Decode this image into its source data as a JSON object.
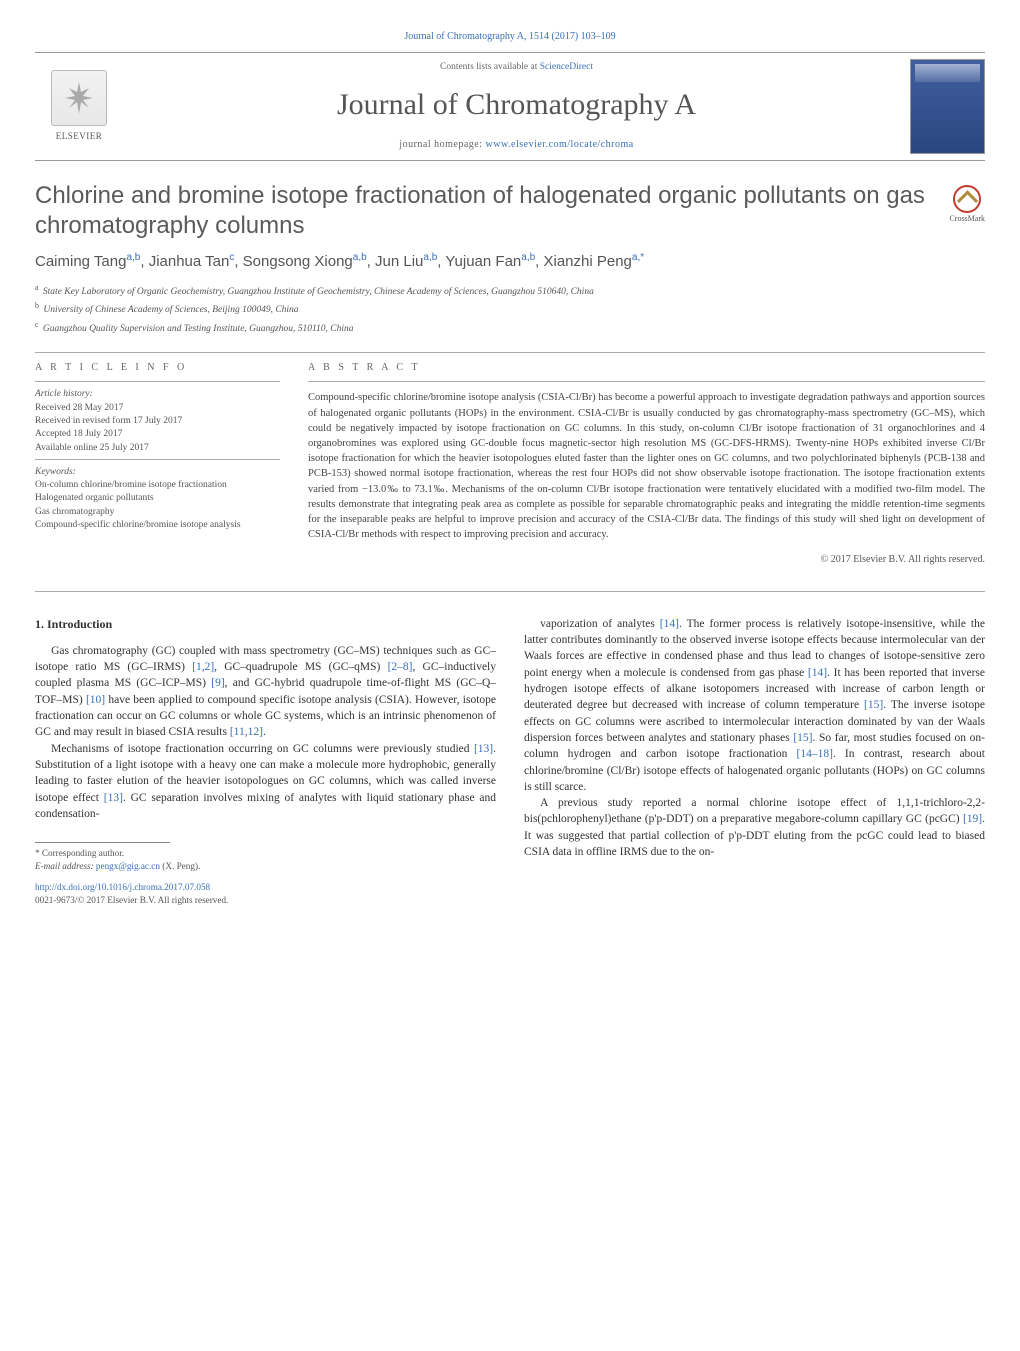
{
  "journal_ref_line": "Journal of Chromatography A, 1514 (2017) 103–109",
  "header": {
    "elsevier_label": "ELSEVIER",
    "contents_prefix": "Contents lists available at ",
    "contents_link": "ScienceDirect",
    "journal_name": "Journal of Chromatography A",
    "homepage_prefix": "journal homepage: ",
    "homepage_link": "www.elsevier.com/locate/chroma"
  },
  "crossmark_label": "CrossMark",
  "title": "Chlorine and bromine isotope fractionation of halogenated organic pollutants on gas chromatography columns",
  "authors_html": "Caiming Tang<sup>a,b</sup>, Jianhua Tan<sup>c</sup>, Songsong Xiong<sup>a,b</sup>, Jun Liu<sup>a,b</sup>, Yujuan Fan<sup>a,b</sup>, Xianzhi Peng<sup>a,*</sup>",
  "affiliations": [
    {
      "key": "a",
      "text": "State Key Laboratory of Organic Geochemistry, Guangzhou Institute of Geochemistry, Chinese Academy of Sciences, Guangzhou 510640, China"
    },
    {
      "key": "b",
      "text": "University of Chinese Academy of Sciences, Beijing 100049, China"
    },
    {
      "key": "c",
      "text": "Guangzhou Quality Supervision and Testing Institute, Guangzhou, 510110, China"
    }
  ],
  "article_info": {
    "heading": "A R T I C L E   I N F O",
    "history_label": "Article history:",
    "received": "Received 28 May 2017",
    "revised": "Received in revised form 17 July 2017",
    "accepted": "Accepted 18 July 2017",
    "online": "Available online 25 July 2017",
    "keywords_label": "Keywords:",
    "keywords": [
      "On-column chlorine/bromine isotope fractionation",
      "Halogenated organic pollutants",
      "Gas chromatography",
      "Compound-specific chlorine/bromine isotope analysis"
    ]
  },
  "abstract": {
    "heading": "A B S T R A C T",
    "text": "Compound-specific chlorine/bromine isotope analysis (CSIA-Cl/Br) has become a powerful approach to investigate degradation pathways and apportion sources of halogenated organic pollutants (HOPs) in the environment. CSIA-Cl/Br is usually conducted by gas chromatography-mass spectrometry (GC–MS), which could be negatively impacted by isotope fractionation on GC columns. In this study, on-column Cl/Br isotope fractionation of 31 organochlorines and 4 organobromines was explored using GC-double focus magnetic-sector high resolution MS (GC-DFS-HRMS). Twenty-nine HOPs exhibited inverse Cl/Br isotope fractionation for which the heavier isotopologues eluted faster than the lighter ones on GC columns, and two polychlorinated biphenyls (PCB-138 and PCB-153) showed normal isotope fractionation, whereas the rest four HOPs did not show observable isotope fractionation. The isotope fractionation extents varied from −13.0‰ to 73.1‰. Mechanisms of the on-column Cl/Br isotope fractionation were tentatively elucidated with a modified two-film model. The results demonstrate that integrating peak area as complete as possible for separable chromatographic peaks and integrating the middle retention-time segments for the inseparable peaks are helpful to improve precision and accuracy of the CSIA-Cl/Br data. The findings of this study will shed light on development of CSIA-Cl/Br methods with respect to improving precision and accuracy.",
    "copyright": "© 2017 Elsevier B.V. All rights reserved."
  },
  "intro_heading": "1.  Introduction",
  "body": {
    "p1_pre": "Gas chromatography (GC) coupled with mass spectrometry (GC–MS) techniques such as GC–isotope ratio MS (GC–IRMS) ",
    "r1": "[1,2]",
    "p1_a": ", GC–quadrupole MS (GC–qMS) ",
    "r2": "[2–8]",
    "p1_b": ", GC–inductively coupled plasma MS (GC–ICP–MS) ",
    "r3": "[9]",
    "p1_c": ", and GC-hybrid quadrupole time-of-flight MS (GC–Q–TOF–MS) ",
    "r4": "[10]",
    "p1_d": " have been applied to compound specific isotope analysis (CSIA). However, isotope fractionation can occur on GC columns or whole GC systems, which is an intrinsic phenomenon of GC and may result in biased CSIA results ",
    "r5": "[11,12]",
    "p1_end": ".",
    "p2_pre": "Mechanisms of isotope fractionation occurring on GC columns were previously studied ",
    "r6": "[13]",
    "p2_a": ". Substitution of a light isotope with a heavy one can make a molecule more hydrophobic, generally leading to faster elution of the heavier isotopologues on GC columns, which was called inverse isotope effect ",
    "r7": "[13]",
    "p2_b": ". GC separation involves mixing of analytes with liquid stationary phase and condensation-",
    "p3_pre": "vaporization of analytes ",
    "r8": "[14]",
    "p3_a": ". The former process is relatively isotope-insensitive, while the latter contributes dominantly to the observed inverse isotope effects because intermolecular van der Waals forces are effective in condensed phase and thus lead to changes of isotope-sensitive zero point energy when a molecule is condensed from gas phase ",
    "r9": "[14]",
    "p3_b": ". It has been reported that inverse hydrogen isotope effects of alkane isotopomers increased with increase of carbon length or deuterated degree but decreased with increase of column temperature ",
    "r10": "[15]",
    "p3_c": ". The inverse isotope effects on GC columns were ascribed to intermolecular interaction dominated by van der Waals dispersion forces between analytes and stationary phases ",
    "r11": "[15]",
    "p3_d": ". So far, most studies focused on on-column hydrogen and carbon isotope fractionation ",
    "r12": "[14–18]",
    "p3_e": ". In contrast, research about chlorine/bromine (Cl/Br) isotope effects of halogenated organic pollutants (HOPs) on GC columns is still scarce.",
    "p4_pre": "A previous study reported a normal chlorine isotope effect of 1,1,1-trichloro-2,2-bis(pchlorophenyl)ethane (p'p-DDT) on a preparative megabore-column capillary GC (pcGC) ",
    "r13": "[19]",
    "p4_a": ". It was suggested that partial collection of p'p-DDT eluting from the pcGC could lead to biased CSIA data in offline IRMS due to the on-"
  },
  "corresponding": {
    "label": "* Corresponding author.",
    "email_label": "E-mail address: ",
    "email": "pengx@gig.ac.cn",
    "email_suffix": " (X. Peng)."
  },
  "doi": {
    "link": "http://dx.doi.org/10.1016/j.chroma.2017.07.058",
    "issn_line": "0021-9673/© 2017 Elsevier B.V. All rights reserved."
  },
  "colors": {
    "link": "#3a6fb7",
    "text": "#333333",
    "muted": "#666666",
    "rule": "#999999"
  }
}
